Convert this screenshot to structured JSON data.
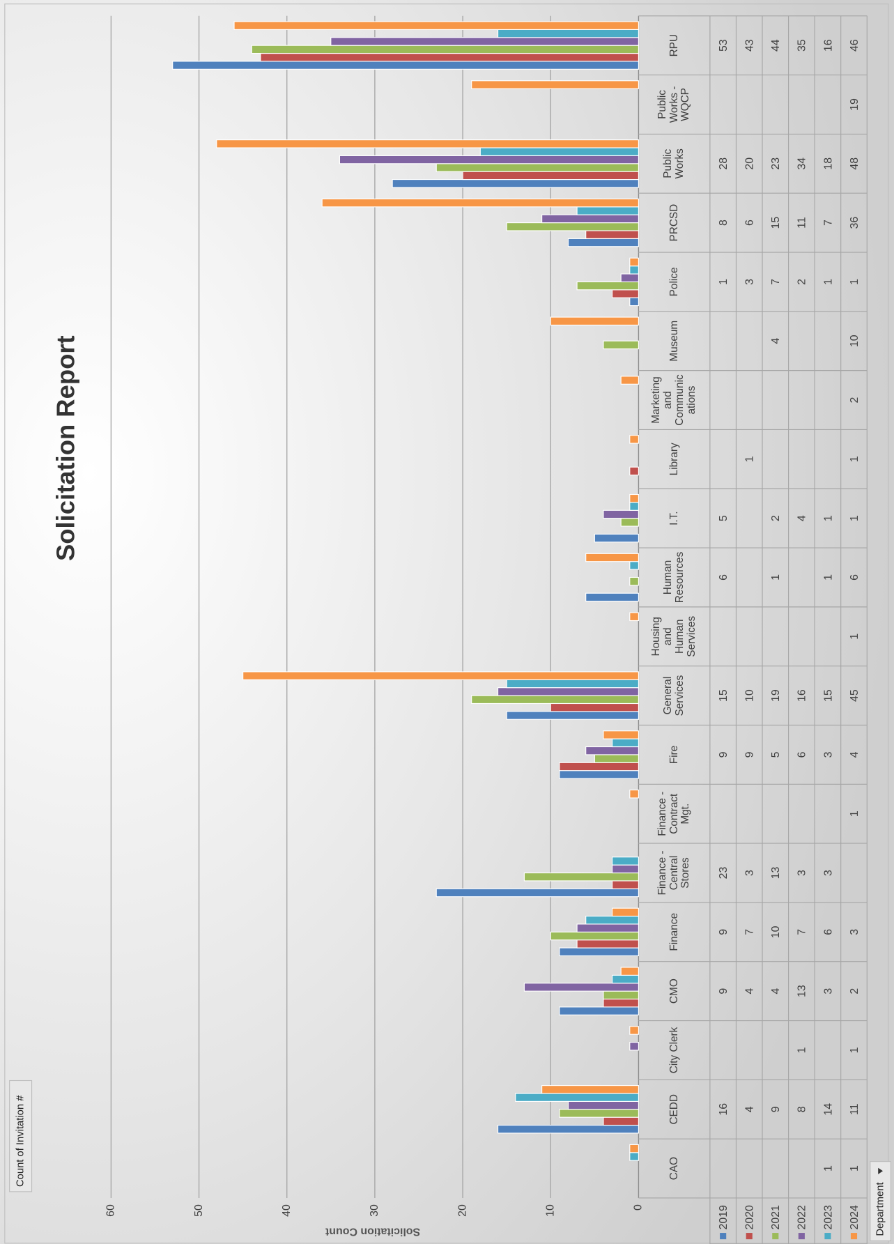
{
  "chart_data": {
    "type": "bar",
    "title": "Solicitation Report",
    "y_axis_label": "Solicitation Count",
    "value_field_button": "Count of Invitation #",
    "axis_field_button": "Department",
    "categories": [
      "CAO",
      "CEDD",
      "City Clerk",
      "CMO",
      "Finance",
      "Finance - Central Stores",
      "Finance - Contract Mgt.",
      "Fire",
      "General Services",
      "Housing and Human Services",
      "Human Resources",
      "I.T.",
      "Library",
      "Marketing and Communications",
      "Museum",
      "Police",
      "PRCSD",
      "Public Works",
      "Public Works - WQCP",
      "RPU"
    ],
    "series": [
      {
        "name": "2019",
        "color": "#4f81bd",
        "values": [
          null,
          16,
          null,
          9,
          9,
          23,
          null,
          9,
          15,
          null,
          6,
          5,
          null,
          null,
          null,
          1,
          8,
          28,
          null,
          53
        ]
      },
      {
        "name": "2020",
        "color": "#c0504d",
        "values": [
          null,
          4,
          null,
          4,
          7,
          3,
          null,
          9,
          10,
          null,
          null,
          null,
          1,
          null,
          null,
          3,
          6,
          20,
          null,
          43
        ]
      },
      {
        "name": "2021",
        "color": "#9bbb59",
        "values": [
          null,
          9,
          null,
          4,
          10,
          13,
          null,
          5,
          19,
          null,
          1,
          2,
          null,
          null,
          4,
          7,
          15,
          23,
          null,
          44
        ]
      },
      {
        "name": "2022",
        "color": "#8064a2",
        "values": [
          null,
          8,
          1,
          13,
          7,
          3,
          null,
          6,
          16,
          null,
          null,
          4,
          null,
          null,
          null,
          2,
          11,
          34,
          null,
          35
        ]
      },
      {
        "name": "2023",
        "color": "#4bacc6",
        "values": [
          1,
          14,
          null,
          3,
          6,
          3,
          null,
          3,
          15,
          null,
          1,
          1,
          null,
          null,
          null,
          1,
          7,
          18,
          null,
          16
        ]
      },
      {
        "name": "2024",
        "color": "#f79646",
        "values": [
          1,
          11,
          1,
          2,
          3,
          null,
          1,
          4,
          45,
          1,
          6,
          1,
          1,
          2,
          10,
          1,
          36,
          48,
          19,
          46
        ]
      }
    ],
    "ylim": [
      0,
      60
    ],
    "yticks": [
      0,
      10,
      20,
      30,
      40,
      50,
      60
    ],
    "grid": true,
    "data_table": true
  }
}
